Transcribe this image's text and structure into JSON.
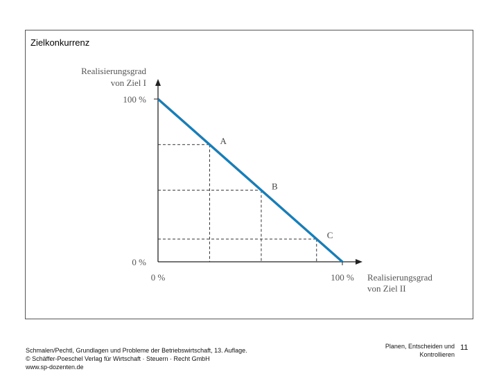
{
  "slide": {
    "title": "Zielkonkurrenz",
    "source_line1": "Schmalen/Pechtl, Grundlagen und Probleme der Betriebswirtschaft, 13. Auflage.",
    "source_line2": "© Schäffer-Poeschel Verlag für Wirtschaft · Steuern · Recht GmbH",
    "source_line3": "www.sp-dozenten.de",
    "topic_line1": "Planen, Entscheiden und",
    "topic_line2": "Kontrollieren",
    "page_number": "11"
  },
  "chart_data": {
    "type": "line",
    "title": "",
    "ylabel_line1": "Realisierungsgrad",
    "ylabel_line2": "von Ziel I",
    "xlabel_line1": "Realisierungsgrad",
    "xlabel_line2": "von Ziel II",
    "x_ticks": [
      "0 %",
      "100 %"
    ],
    "y_ticks": [
      "100 %",
      "0 %"
    ],
    "xlim": [
      0,
      100
    ],
    "ylim": [
      0,
      100
    ],
    "series": [
      {
        "x": [
          0,
          100
        ],
        "y": [
          100,
          0
        ]
      }
    ],
    "points": [
      {
        "label": "A",
        "x": 28,
        "y": 72
      },
      {
        "label": "B",
        "x": 56,
        "y": 44
      },
      {
        "label": "C",
        "x": 86,
        "y": 14
      }
    ],
    "grid": false,
    "line_color": "#1a7db5",
    "axis_color": "#222222",
    "guide_color": "#333333"
  }
}
